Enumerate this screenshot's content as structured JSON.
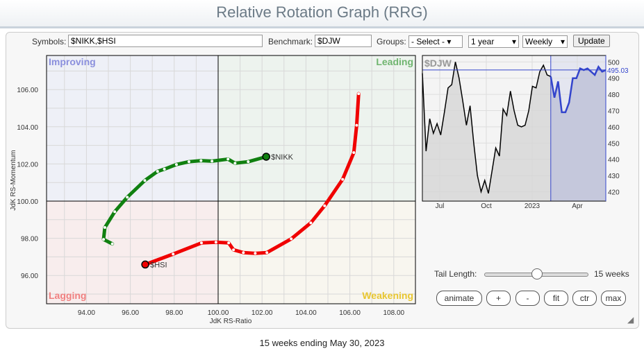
{
  "title": "Relative Rotation Graph (RRG)",
  "controls": {
    "symbols_label": "Symbols:",
    "symbols_value": "$NIKK,$HSI",
    "benchmark_label": "Benchmark:",
    "benchmark_value": "$DJW",
    "groups_label": "Groups:",
    "groups_value": "- Select -",
    "period_value": "1 year",
    "frequency_value": "Weekly",
    "update_label": "Update"
  },
  "tail": {
    "label": "Tail Length:",
    "value_text": "15 weeks",
    "value": 15,
    "fraction": 0.5
  },
  "buttons": [
    "animate",
    "+",
    "-",
    "fit",
    "ctr",
    "max"
  ],
  "footer": "15 weeks ending May 30, 2023",
  "chart_data": [
    {
      "type": "line",
      "title": "",
      "xlabel": "JdK RS-Ratio",
      "ylabel": "JdK RS-Momentum",
      "xlim": [
        92.2,
        109
      ],
      "ylim": [
        94.7,
        107.9
      ],
      "xticks": [
        "94.00",
        "96.00",
        "98.00",
        "100.00",
        "102.00",
        "104.00",
        "106.00",
        "108.00"
      ],
      "yticks": [
        "96.00",
        "98.00",
        "100.00",
        "102.00",
        "104.00",
        "106.00"
      ],
      "quadrants": {
        "improving": "Improving",
        "leading": "Leading",
        "lagging": "Lagging",
        "weakening": "Weakening"
      },
      "grid": true,
      "series": [
        {
          "name": "$NIKK",
          "color": "#108010",
          "x": [
            95.18,
            94.78,
            94.84,
            95.29,
            95.86,
            96.66,
            97.24,
            97.55,
            98.1,
            98.67,
            99.22,
            99.72,
            100.45,
            100.77,
            101.37,
            102.19
          ],
          "y": [
            97.7,
            97.94,
            98.58,
            99.43,
            100.21,
            101.11,
            101.6,
            101.72,
            101.97,
            102.12,
            102.18,
            102.15,
            102.26,
            102.04,
            102.12,
            102.39
          ]
        },
        {
          "name": "$HSI",
          "color": "#f00000",
          "x": [
            106.4,
            106.31,
            106.18,
            105.67,
            104.85,
            104.22,
            103.33,
            102.22,
            101.69,
            101.15,
            100.7,
            100.48,
            99.9,
            99.24,
            97.95,
            96.68
          ],
          "y": [
            105.78,
            104.08,
            102.61,
            101.17,
            99.75,
            98.83,
            97.97,
            97.23,
            97.19,
            97.23,
            97.38,
            97.75,
            97.79,
            97.75,
            97.15,
            96.59
          ]
        }
      ]
    },
    {
      "type": "line",
      "title": "$DJW",
      "ylim": [
        415,
        503
      ],
      "yticks": [
        "420",
        "430",
        "440",
        "450",
        "460",
        "470",
        "480",
        "490",
        "500"
      ],
      "xticks": [
        "Jul",
        "Oct",
        "2023",
        "Apr"
      ],
      "last_value": "495.03",
      "grid": true,
      "values": [
        493,
        445,
        465,
        456,
        462,
        455,
        469,
        484,
        486,
        500,
        490,
        476,
        461,
        473,
        450,
        430,
        420,
        427,
        419,
        433,
        447,
        442,
        471,
        467,
        482,
        470,
        461,
        460,
        461,
        470,
        485,
        484,
        494,
        498,
        492,
        491,
        478,
        488,
        469,
        469,
        475,
        490,
        490,
        496,
        495,
        496,
        494,
        492,
        497,
        494,
        495
      ],
      "highlight_start_index": 35,
      "highlight_color": "#3344cc"
    }
  ]
}
